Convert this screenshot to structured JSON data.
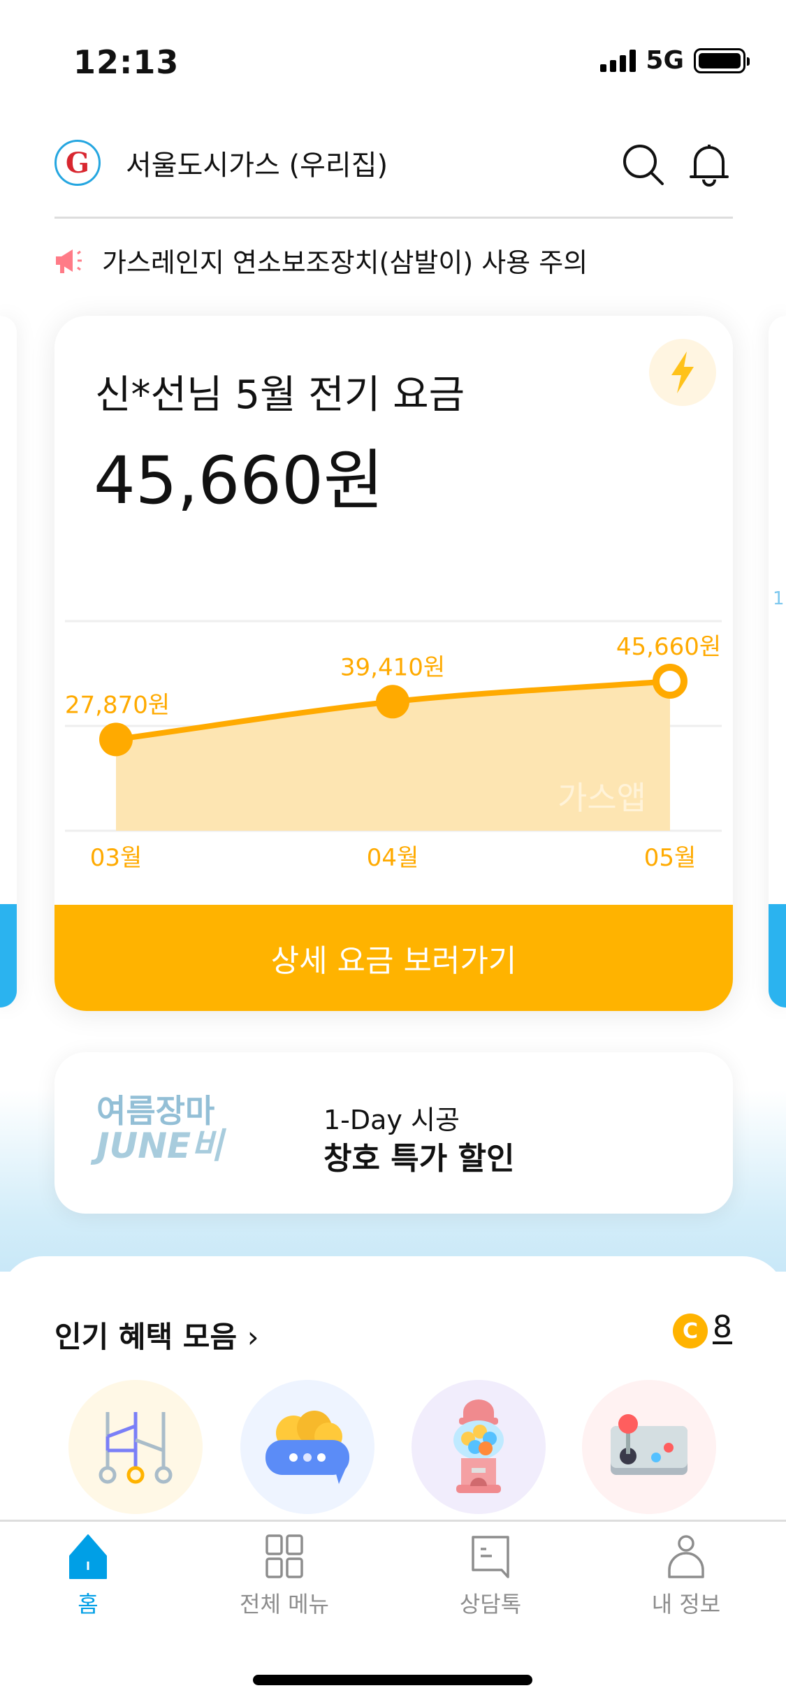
{
  "status_bar": {
    "time": "12:13",
    "network": "5G"
  },
  "header": {
    "title": "서울도시가스  (우리집)",
    "logo_icon": "seoul-city-gas-logo",
    "search_icon": "search-icon",
    "bell_icon": "bell-icon"
  },
  "notice": {
    "icon": "megaphone-icon",
    "text": "가스레인지 연소보조장치(삼발이) 사용 주의"
  },
  "bill_card": {
    "title": "신*선님 5월 전기 요금",
    "amount": "45,660원",
    "icon": "lightning-icon",
    "button_label": "상세 요금 보러가기",
    "watermark": "가스앱"
  },
  "peek_card_right": {
    "text": "1"
  },
  "chart_data": {
    "type": "area",
    "categories": [
      "03월",
      "04월",
      "05월"
    ],
    "values": [
      27870,
      39410,
      45660
    ],
    "data_labels": [
      "27,870원",
      "39,410원",
      "45,660원"
    ],
    "ylim": [
      0,
      64000
    ],
    "grid": true,
    "colors": {
      "line": "#FFAA00",
      "fill": "#FDE5B2",
      "label": "#FFAA00"
    }
  },
  "banner": {
    "art_line1": "여름장마",
    "art_line2": "JUNE비",
    "subtitle": "1-Day 시공",
    "title": "창호 특가 할인"
  },
  "benefits": {
    "title": "인기 혜택 모음",
    "chevron": "›",
    "coin_label": "C",
    "coin_count": "8",
    "items": [
      {
        "icon": "ladder-game-icon",
        "bg": "#FFF8E6"
      },
      {
        "icon": "coin-chat-icon",
        "bg": "#EEF4FF"
      },
      {
        "icon": "gumball-machine-icon",
        "bg": "#F1EDFC"
      },
      {
        "icon": "arcade-joystick-icon",
        "bg": "#FFF2F2"
      }
    ]
  },
  "tab_bar": {
    "items": [
      {
        "label": "홈",
        "icon": "home-icon",
        "active": true
      },
      {
        "label": "전체 메뉴",
        "icon": "grid-menu-icon",
        "active": false
      },
      {
        "label": "상담톡",
        "icon": "chat-icon",
        "active": false
      },
      {
        "label": "내 정보",
        "icon": "person-icon",
        "active": false
      }
    ]
  },
  "colors": {
    "accent": "#FFB300",
    "tab_active": "#009FE6",
    "side_card": "#2BB3EF"
  }
}
